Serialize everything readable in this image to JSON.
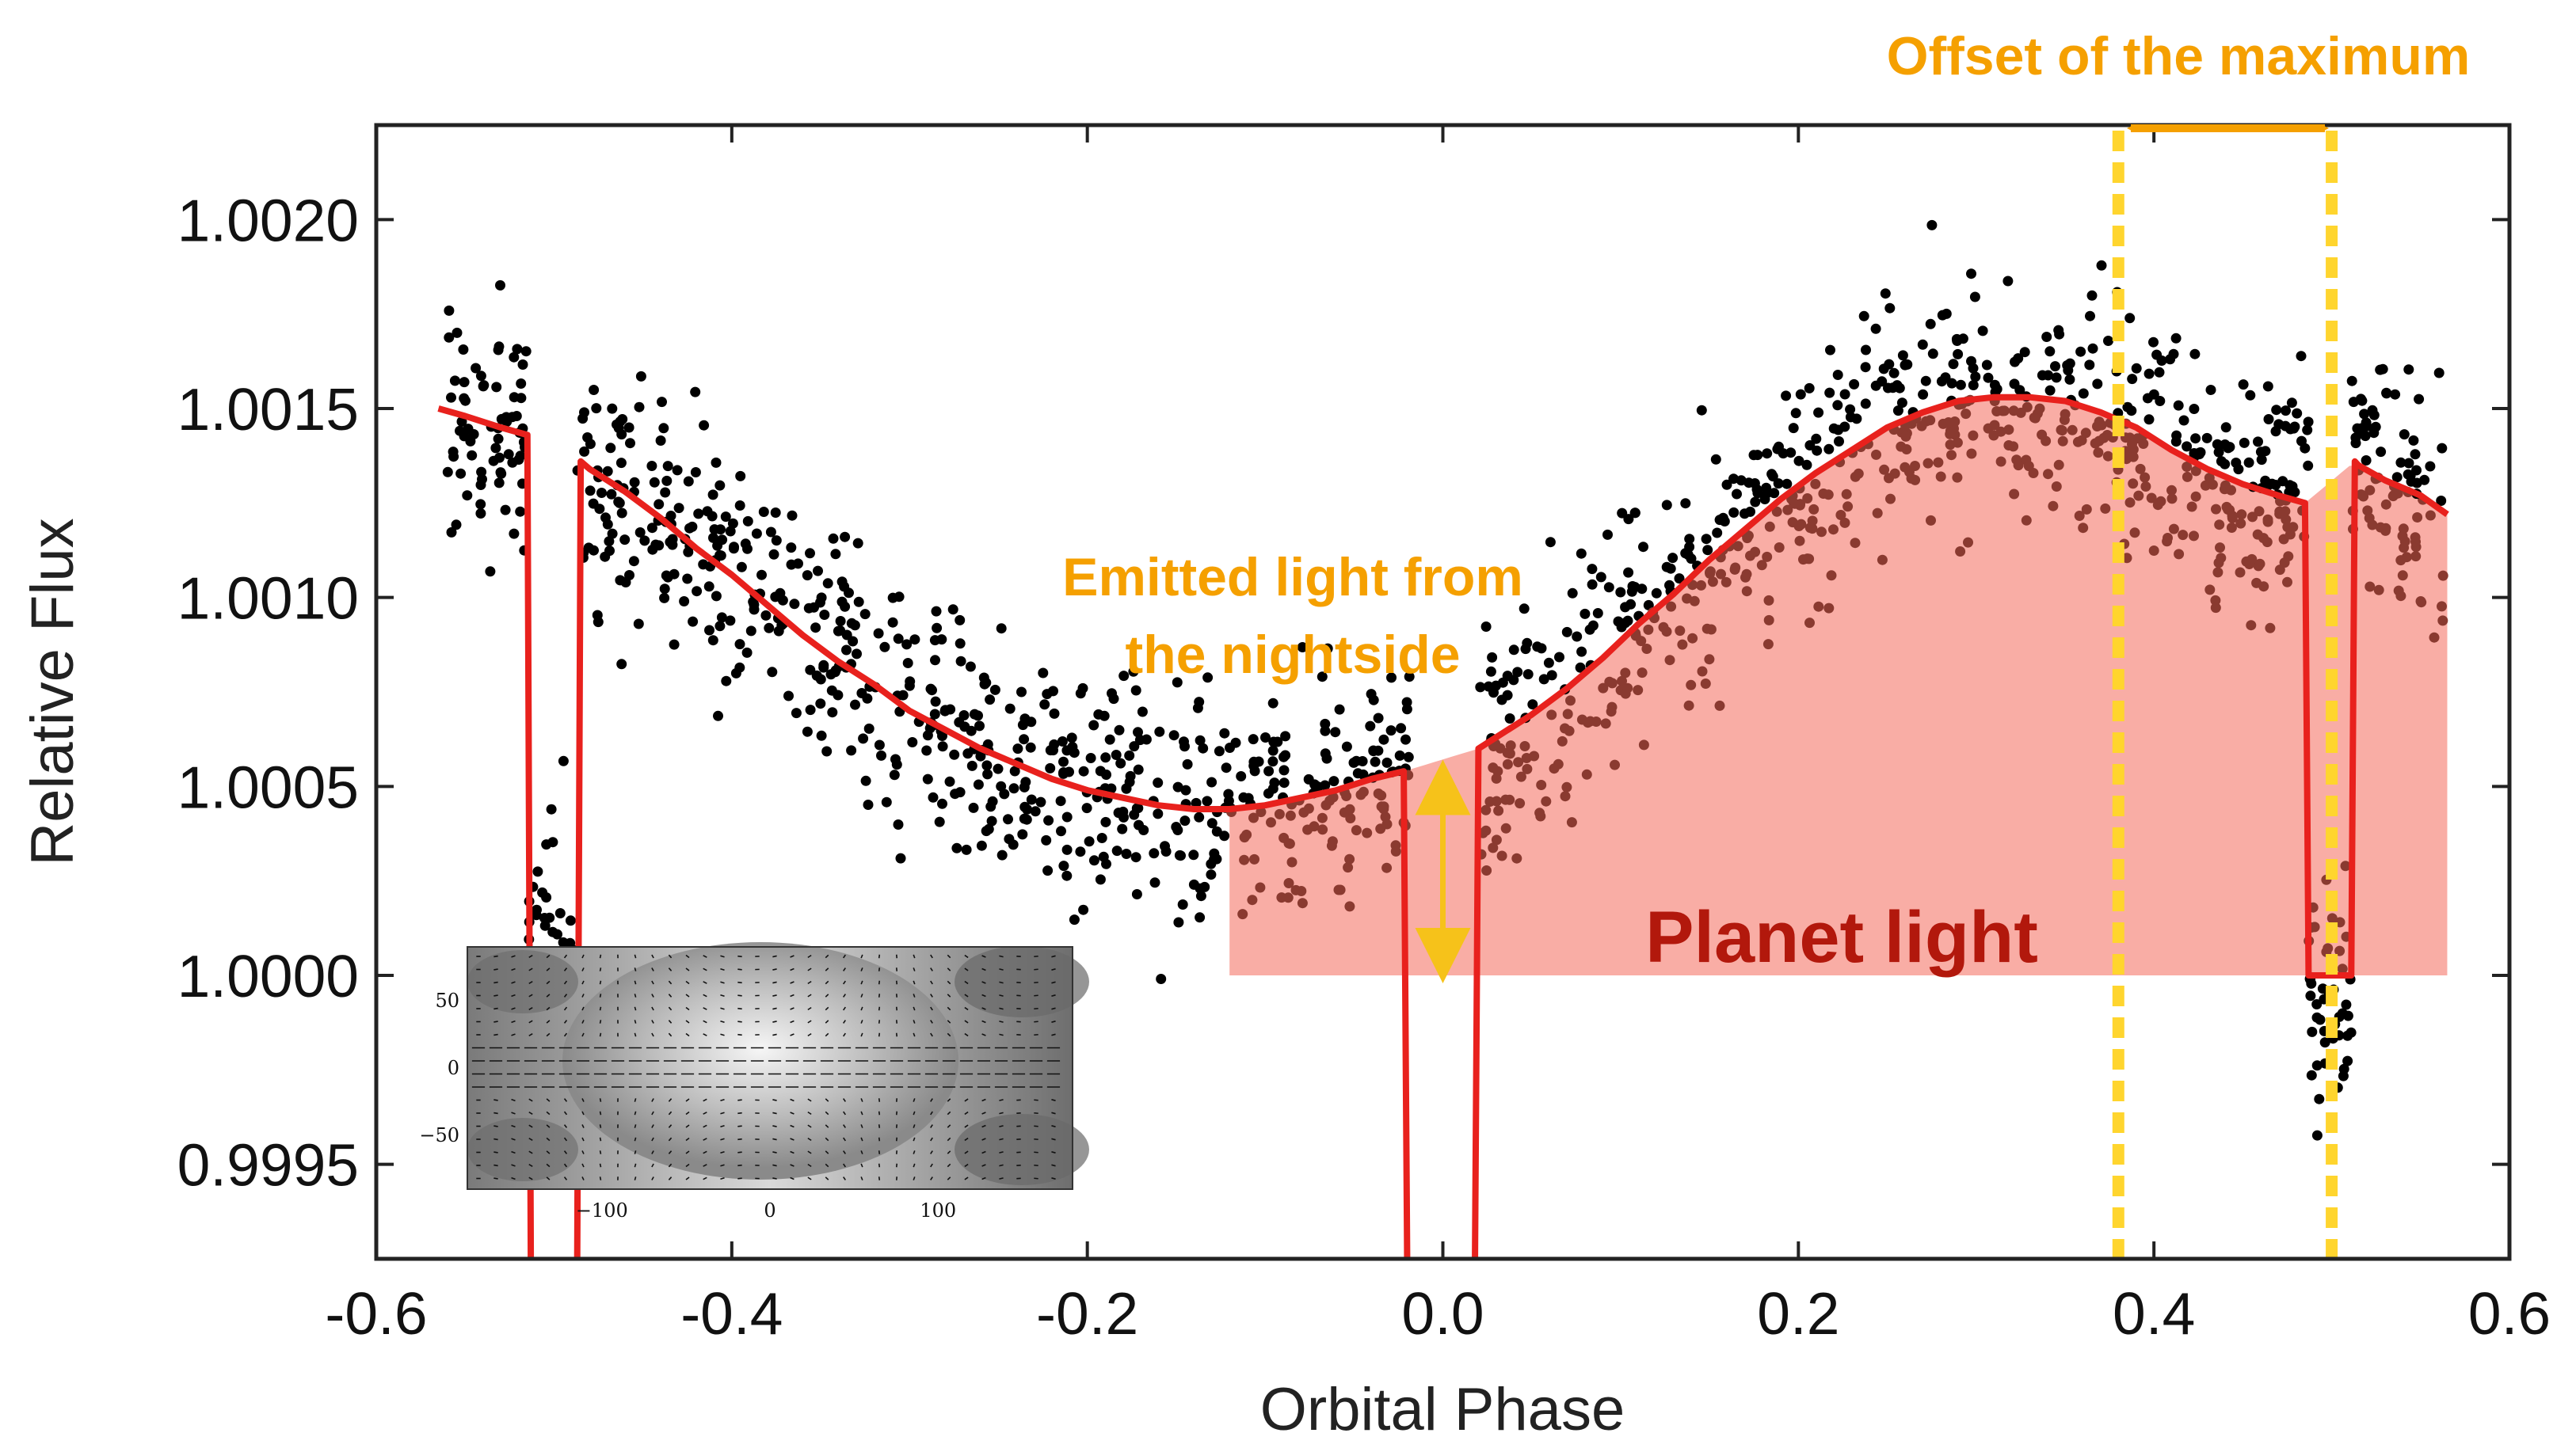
{
  "chart_data": {
    "type": "scatter",
    "title": "",
    "xlabel": "Orbital Phase",
    "ylabel": "Relative Flux",
    "xlim": [
      -0.6,
      0.6
    ],
    "ylim": [
      0.99925,
      1.00225
    ],
    "xticks": [
      -0.6,
      -0.4,
      -0.2,
      0.0,
      0.2,
      0.4,
      0.6
    ],
    "xtick_labels": [
      "-0.6",
      "-0.4",
      "-0.2",
      "0.0",
      "0.2",
      "0.4",
      "0.6"
    ],
    "yticks": [
      0.9995,
      1.0,
      1.0005,
      1.001,
      1.0015,
      1.002
    ],
    "ytick_labels": [
      "0.9995",
      "1.0000",
      "1.0005",
      "1.0010",
      "1.0015",
      "1.0020"
    ],
    "series": [
      {
        "name": "model",
        "type": "line",
        "color": "#e8211d",
        "x": [
          -0.565,
          -0.55,
          -0.53,
          -0.515,
          -0.513,
          -0.505,
          -0.487,
          -0.485,
          -0.48,
          -0.46,
          -0.44,
          -0.42,
          -0.4,
          -0.38,
          -0.36,
          -0.34,
          -0.32,
          -0.3,
          -0.28,
          -0.26,
          -0.24,
          -0.22,
          -0.2,
          -0.18,
          -0.16,
          -0.14,
          -0.12,
          -0.1,
          -0.08,
          -0.06,
          -0.04,
          -0.022,
          -0.02,
          -0.018,
          0.018,
          0.02,
          0.03,
          0.05,
          0.07,
          0.09,
          0.11,
          0.13,
          0.15,
          0.17,
          0.19,
          0.21,
          0.23,
          0.25,
          0.27,
          0.29,
          0.31,
          0.33,
          0.35,
          0.37,
          0.39,
          0.41,
          0.43,
          0.45,
          0.47,
          0.485,
          0.487,
          0.489,
          0.511,
          0.513,
          0.515,
          0.53,
          0.55,
          0.565
        ],
        "y": [
          1.0015,
          1.00148,
          1.00145,
          1.00143,
          0.9992,
          0.9992,
          0.9992,
          1.00136,
          1.00134,
          1.00128,
          1.00121,
          1.00113,
          1.00106,
          1.00098,
          1.0009,
          1.00083,
          1.00077,
          1.0007,
          1.00065,
          1.0006,
          1.00056,
          1.00052,
          1.00049,
          1.00047,
          1.00045,
          1.00044,
          1.00044,
          1.00045,
          1.00047,
          1.00049,
          1.00052,
          1.00054,
          0.9992,
          0.9992,
          0.9992,
          1.0006,
          1.00063,
          1.00069,
          1.00076,
          1.00084,
          1.00093,
          1.00101,
          1.0011,
          1.00118,
          1.00126,
          1.00133,
          1.00139,
          1.00145,
          1.00149,
          1.00152,
          1.00153,
          1.00153,
          1.00152,
          1.00149,
          1.00145,
          1.00139,
          1.00134,
          1.0013,
          1.00127,
          1.00125,
          1.0,
          1.0,
          1.0,
          1.00136,
          1.00135,
          1.00131,
          1.00127,
          1.00122
        ]
      },
      {
        "name": "observations",
        "type": "scatter",
        "color": "#000000",
        "description_only": false,
        "baseline_curve": "model",
        "points_per_segment": 150
      }
    ],
    "shaded_region": {
      "label": "Planet light",
      "color": "#f8998e",
      "x_range": [
        -0.12,
        0.565
      ],
      "baseline": 1.0
    },
    "annotations": {
      "nightside": "Emitted light from the nightside",
      "nightside_line1": "Emitted light from",
      "nightside_line2": "the nightside",
      "offset": "Offset of the maximum",
      "planet_light": "Planet light",
      "offset_lines_x": [
        0.38,
        0.5
      ],
      "nightside_arrow": {
        "x": 0.0,
        "y_from": 1.0,
        "y_to": 1.00055
      }
    },
    "inset": {
      "type": "heatmap",
      "xticks": [
        -100,
        0,
        100
      ],
      "xtick_labels": [
        "−100",
        "0",
        "100"
      ],
      "yticks": [
        50,
        0,
        -50
      ],
      "ytick_labels": [
        "50",
        "0",
        "−50"
      ],
      "xlim": [
        -180,
        180
      ],
      "ylim": [
        -90,
        90
      ]
    }
  },
  "colors": {
    "model_line": "#e8211d",
    "shaded": "#f8998e",
    "annotation_orange": "#f5a000",
    "dashed_yellow": "#ffd52e",
    "planet_label": "#b2180c"
  }
}
